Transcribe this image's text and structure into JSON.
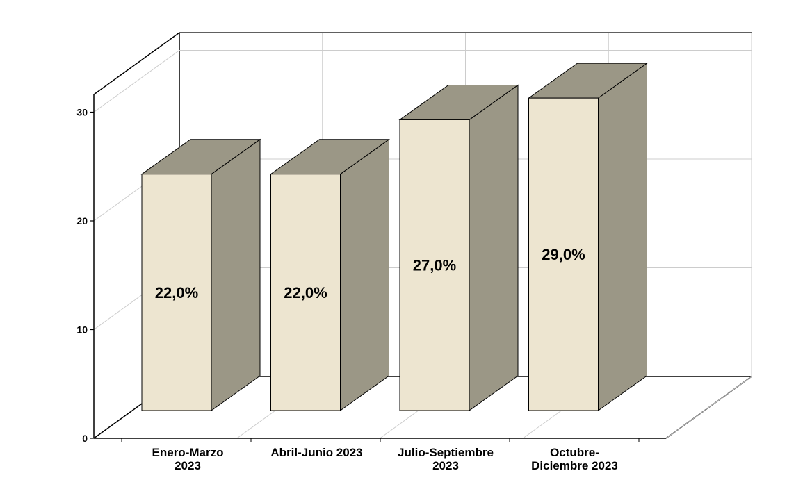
{
  "chart_data": {
    "type": "bar",
    "style": "3d",
    "categories": [
      [
        "Enero-Marzo",
        "2023"
      ],
      [
        "Abril-Junio 2023"
      ],
      [
        "Julio-Septiembre",
        "2023"
      ],
      [
        "Octubre-",
        "Diciembre 2023"
      ]
    ],
    "values": [
      22,
      22,
      27,
      29
    ],
    "data_labels": [
      "22,0%",
      "22,0%",
      "27,0%",
      "29,0%"
    ],
    "yticks": [
      "0",
      "10",
      "20",
      "30"
    ],
    "ylim": [
      0,
      30
    ],
    "grid": true,
    "colors": {
      "front": "#ede5d0",
      "side": "#9b9786",
      "top": "#9b9786",
      "grid": "#cccccc",
      "axis": "#000000"
    }
  }
}
